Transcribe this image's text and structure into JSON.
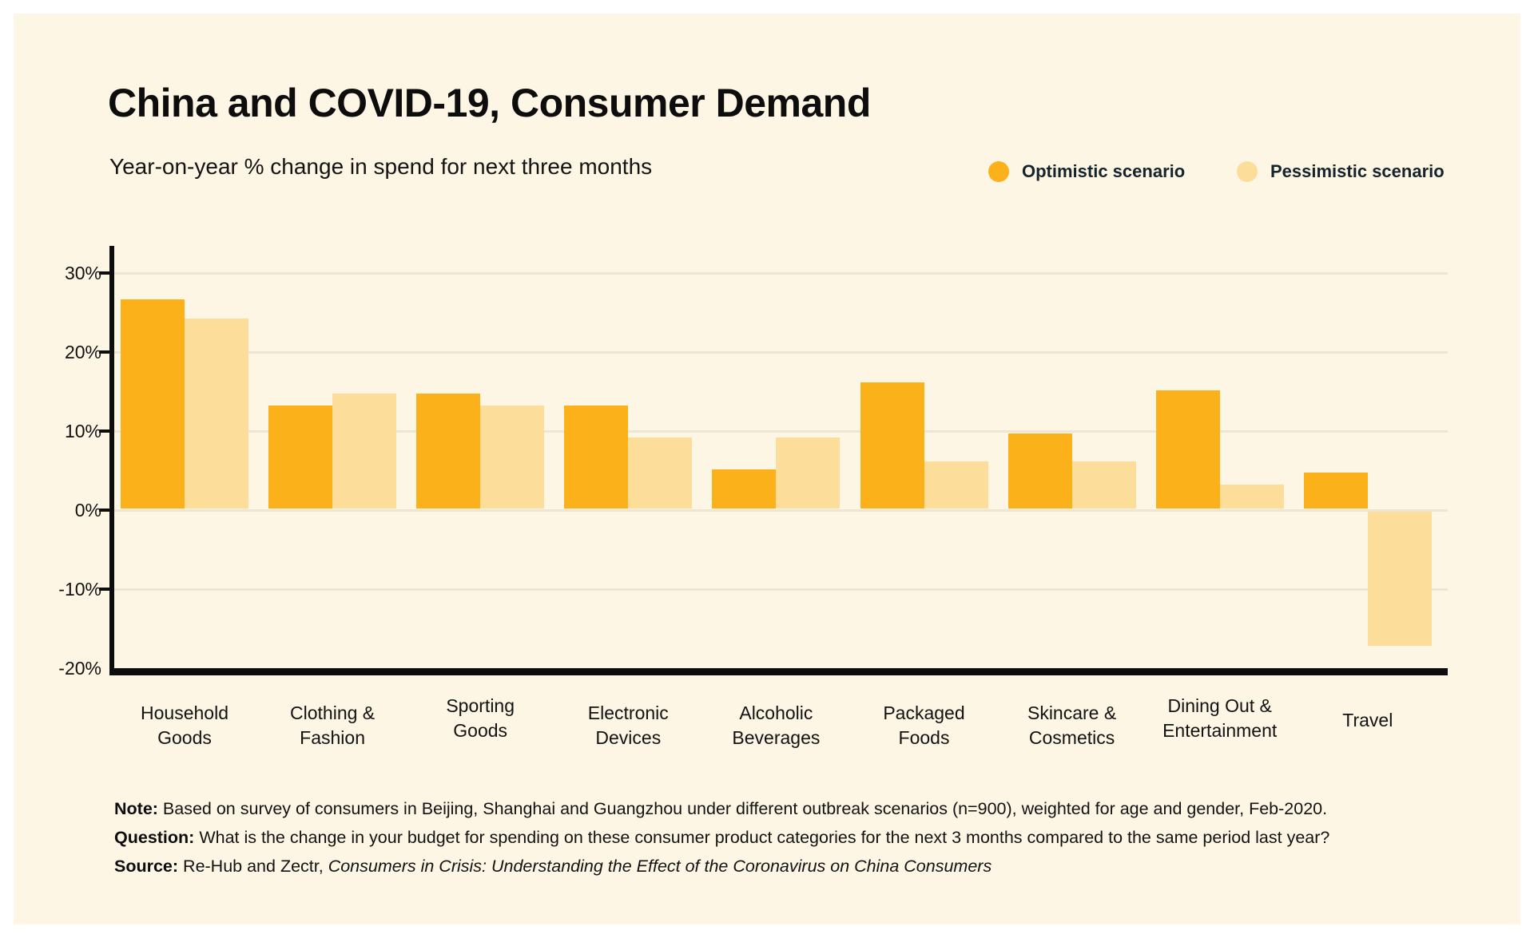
{
  "header": {
    "title": "China and COVID-19, Consumer Demand",
    "subtitle": "Year-on-year % change in spend for next three months"
  },
  "legend": [
    {
      "label": "Optimistic scenario",
      "color": "#FBB119"
    },
    {
      "label": "Pessimistic scenario",
      "color": "#FCDD9A"
    }
  ],
  "colors": {
    "page_background": "#FFFFFF",
    "panel_background": "#FDF6E4",
    "gridline": "#EDE6D5",
    "axis": "#0D0D0D",
    "text": "#1A1A1A",
    "optimistic": "#FBB119",
    "pessimistic": "#FCDD9A"
  },
  "chart_data": {
    "type": "bar",
    "title": "China and COVID-19, Consumer Demand",
    "subtitle": "Year-on-year % change in spend for next three months",
    "unit": "%",
    "categories": [
      "Household Goods",
      "Clothing & Fashion",
      "Sporting Goods",
      "Electronic Devices",
      "Alcoholic Beverages",
      "Packaged Foods",
      "Skincare & Cosmetics",
      "Dining Out & Entertainment",
      "Travel"
    ],
    "category_lines": [
      [
        "Household",
        "Goods"
      ],
      [
        "Clothing &",
        "Fashion"
      ],
      [
        "Sporting",
        "Goods"
      ],
      [
        "Electronic",
        "Devices"
      ],
      [
        "Alcoholic",
        "Beverages"
      ],
      [
        "Packaged",
        "Foods"
      ],
      [
        "Skincare &",
        "Cosmetics"
      ],
      [
        "Dining Out &",
        "Entertainment"
      ],
      [
        "Travel"
      ]
    ],
    "series": [
      {
        "name": "Optimistic scenario",
        "color": "#FBB119",
        "values": [
          26.5,
          13,
          14.5,
          13,
          5,
          16,
          9.5,
          15,
          4.5
        ]
      },
      {
        "name": "Pessimistic scenario",
        "color": "#FCDD9A",
        "values": [
          24,
          14.5,
          13,
          9,
          9,
          6,
          6,
          3,
          -17
        ]
      }
    ],
    "yticks": [
      30,
      20,
      10,
      0,
      -10,
      -20
    ],
    "ytick_labels": [
      "30%",
      "20%",
      "10%",
      "0%",
      "-10%",
      "-20%"
    ],
    "ylim": [
      -20,
      33
    ],
    "grid": true,
    "legend_position": "top-right"
  },
  "notes": [
    {
      "lead": "Note:",
      "text": " Based on survey of consumers in Beijing, Shanghai and Guangzhou under different outbreak scenarios (n=900), weighted for age and gender, Feb-2020."
    },
    {
      "lead": "Question:",
      "text": " What is the change in your budget for spending on these consumer product categories for the next 3 months compared to the same period last year?"
    },
    {
      "lead": "Source:",
      "text": " Re-Hub and Zectr, ",
      "italic": "Consumers in Crisis: Understanding the Effect of the Coronavirus on China Consumers"
    }
  ]
}
